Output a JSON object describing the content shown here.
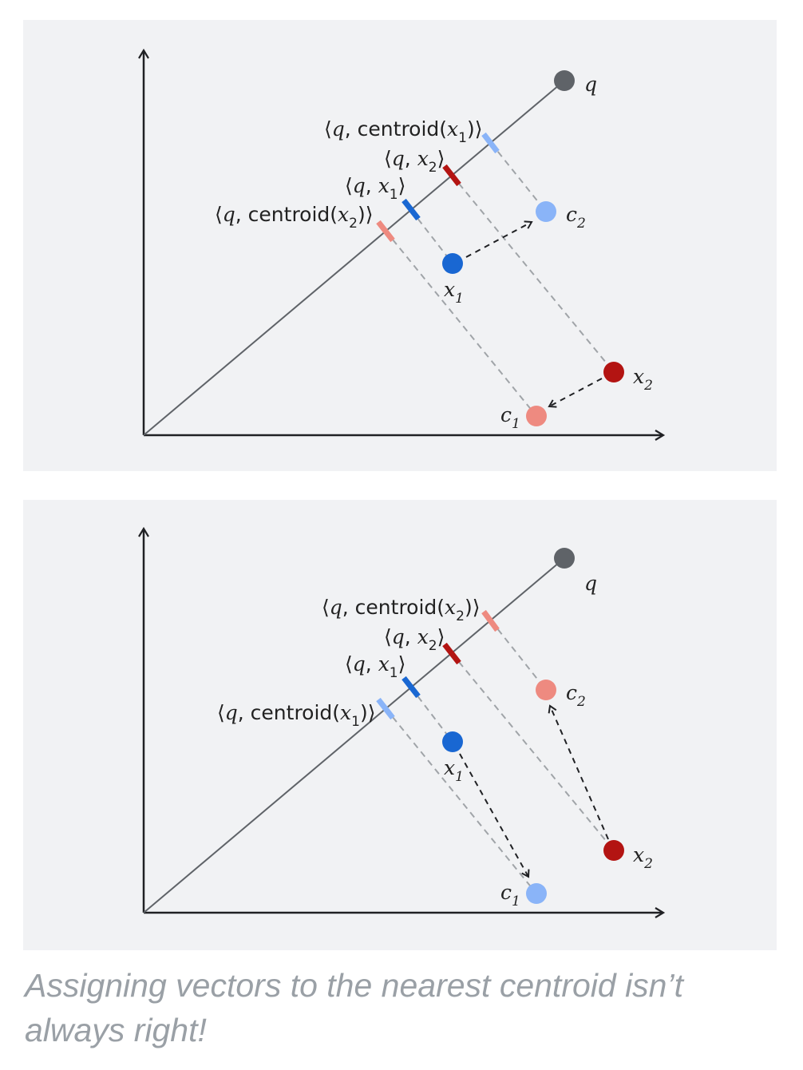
{
  "colors": {
    "background": "#f1f2f4",
    "axis": "#202124",
    "query": "#5f6368",
    "blue_dark": "#1967d2",
    "blue_light": "#8ab4f8",
    "red_dark": "#b31412",
    "red_light": "#ee8a80",
    "guide": "#a0a4a8",
    "caption": "#9aa0a6"
  },
  "top": {
    "q": "q",
    "c1": {
      "base": "c",
      "sub": "1"
    },
    "c2": {
      "base": "c",
      "sub": "2"
    },
    "x1": {
      "base": "x",
      "sub": "1"
    },
    "x2": {
      "base": "x",
      "sub": "2"
    },
    "proj_centroid_x1": {
      "open": "⟨",
      "q": "q",
      "comma": ",",
      "fn": " centroid(",
      "var": "x",
      "sub": "1",
      "close": ")⟩"
    },
    "proj_x2": {
      "open": "⟨",
      "q": "q",
      "comma": ", ",
      "var": "x",
      "sub": "2",
      "close": "⟩"
    },
    "proj_x1": {
      "open": "⟨",
      "q": "q",
      "comma": ", ",
      "var": "x",
      "sub": "1",
      "close": "⟩"
    },
    "proj_centroid_x2": {
      "open": "⟨",
      "q": "q",
      "comma": ",",
      "fn": " centroid(",
      "var": "x",
      "sub": "2",
      "close": ")⟩"
    }
  },
  "bottom": {
    "q": "q",
    "c1": {
      "base": "c",
      "sub": "1"
    },
    "c2": {
      "base": "c",
      "sub": "2"
    },
    "x1": {
      "base": "x",
      "sub": "1"
    },
    "x2": {
      "base": "x",
      "sub": "2"
    },
    "proj_centroid_x2": {
      "open": "⟨",
      "q": "q",
      "comma": ",",
      "fn": " centroid(",
      "var": "x",
      "sub": "2",
      "close": ")⟩"
    },
    "proj_x2": {
      "open": "⟨",
      "q": "q",
      "comma": ", ",
      "var": "x",
      "sub": "2",
      "close": "⟩"
    },
    "proj_x1": {
      "open": "⟨",
      "q": "q",
      "comma": ", ",
      "var": "x",
      "sub": "1",
      "close": "⟩"
    },
    "proj_centroid_x1": {
      "open": "⟨",
      "q": "q",
      "comma": ",",
      "fn": " centroid(",
      "var": "x",
      "sub": "1",
      "close": ")⟩"
    }
  },
  "caption": "Assigning vectors to the nearest centroid isn’t always right!"
}
